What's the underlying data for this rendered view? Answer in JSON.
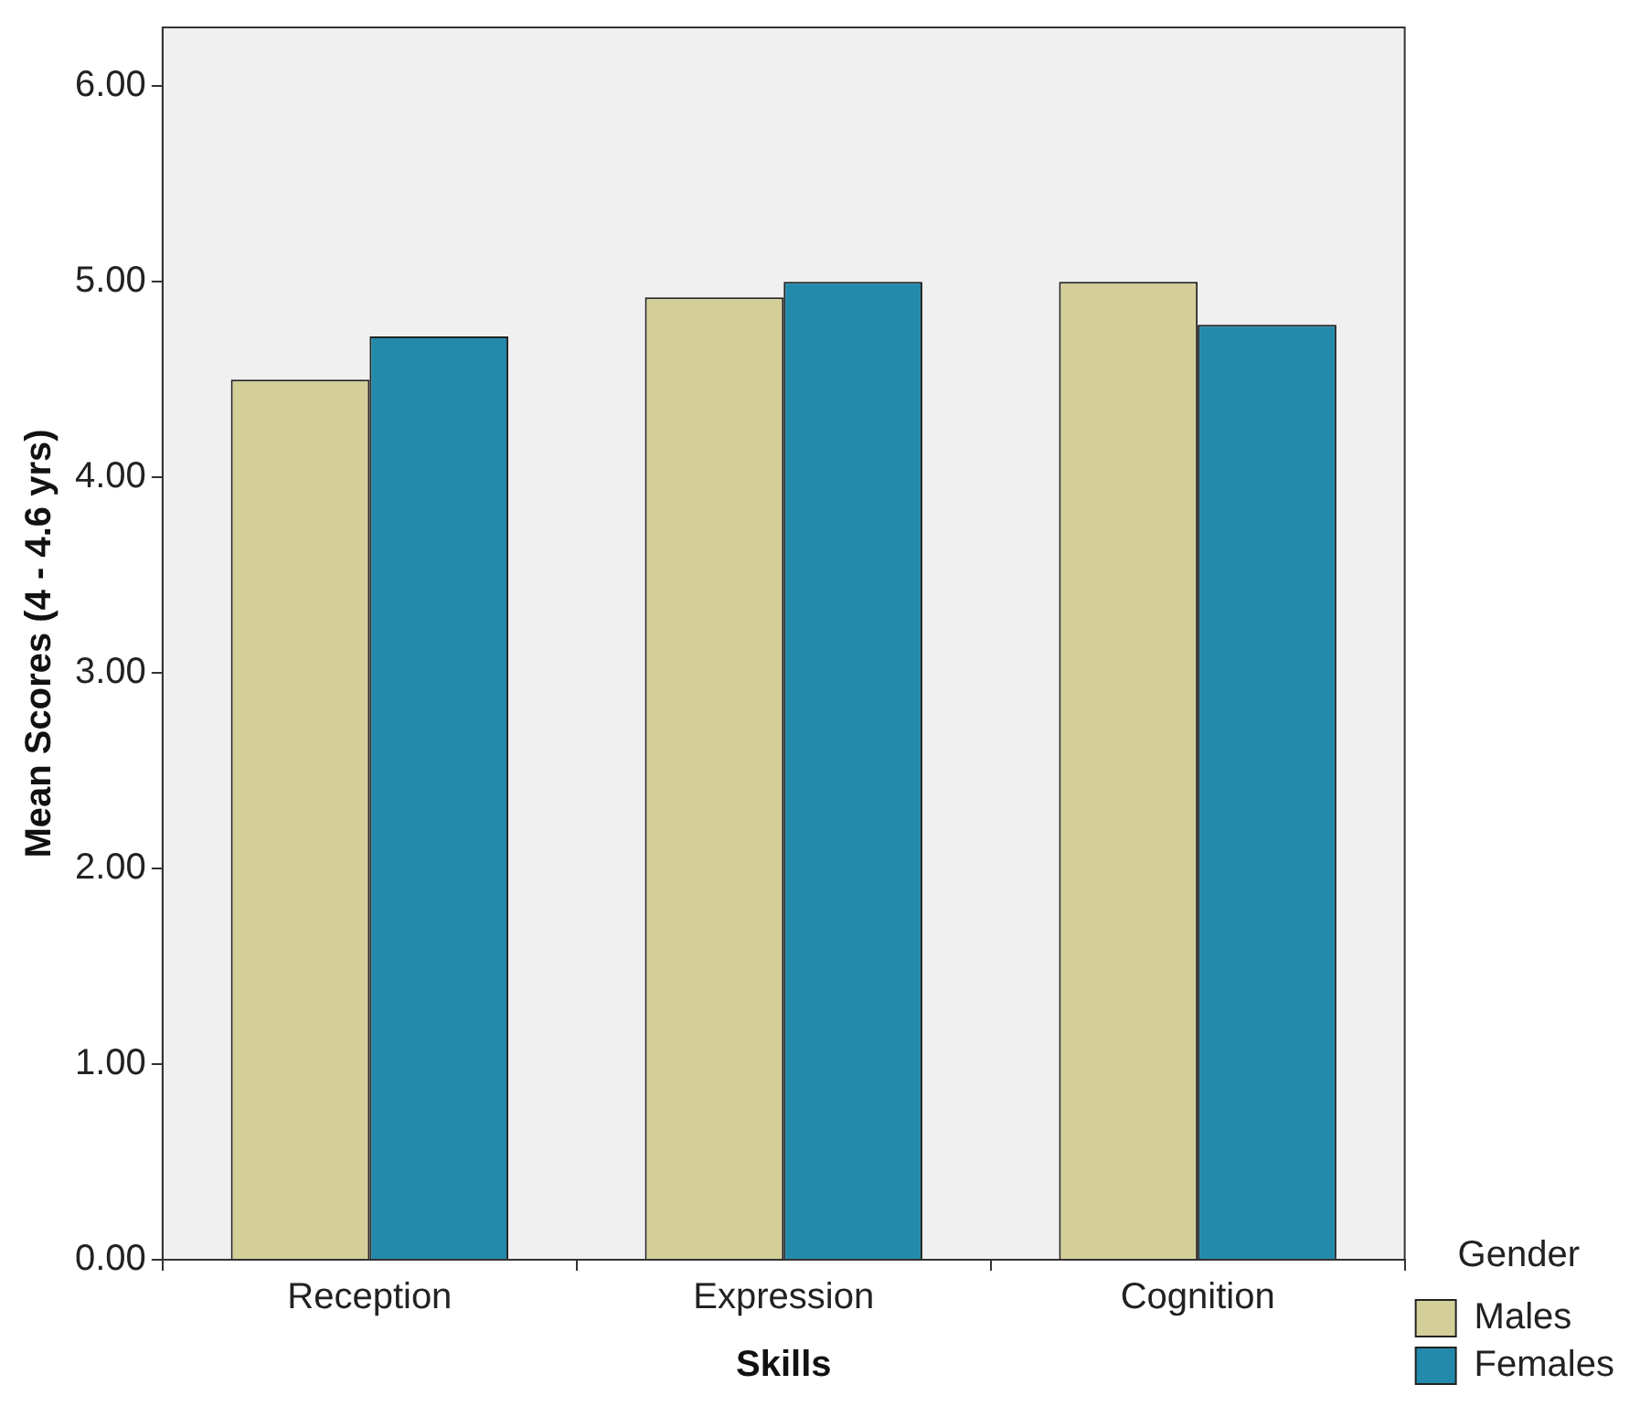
{
  "chart_data": {
    "type": "bar",
    "xlabel": "Skills",
    "ylabel": "Mean Scores (4 - 4.6 yrs)",
    "legend_title": "Gender",
    "categories": [
      "Reception",
      "Expression",
      "Cognition"
    ],
    "series": [
      {
        "name": "Males",
        "color": "#d4cf98",
        "values": [
          4.5,
          4.92,
          5.0
        ]
      },
      {
        "name": "Females",
        "color": "#238aab",
        "values": [
          4.72,
          5.0,
          4.78
        ]
      }
    ],
    "ylim": [
      0,
      6.3
    ],
    "yticks": [
      {
        "value": 0,
        "label": "0.00"
      },
      {
        "value": 1,
        "label": "1.00"
      },
      {
        "value": 2,
        "label": "2.00"
      },
      {
        "value": 3,
        "label": "3.00"
      },
      {
        "value": 4,
        "label": "4.00"
      },
      {
        "value": 5,
        "label": "5.00"
      },
      {
        "value": 6,
        "label": "6.00"
      }
    ],
    "grid": false,
    "legend": "bottom right"
  }
}
